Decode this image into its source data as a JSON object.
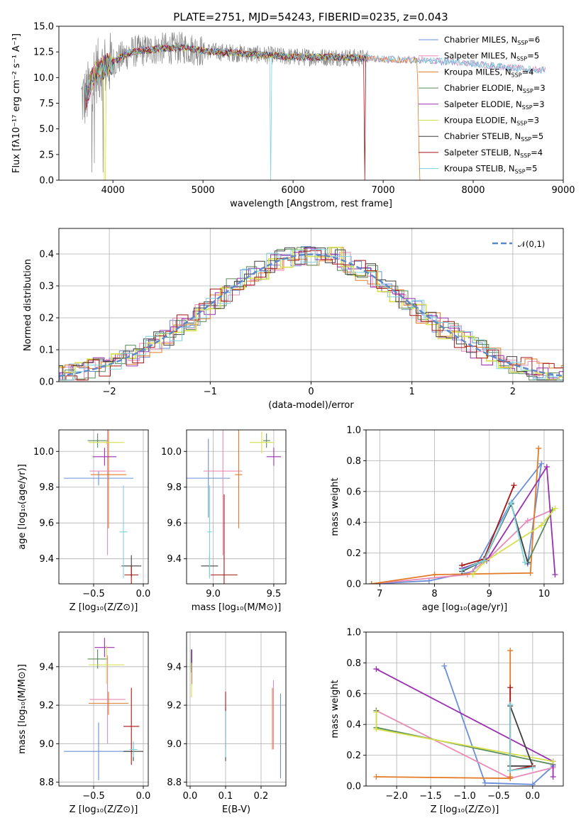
{
  "figure_title": "PLATE=2751, MJD=54243, FIBERID=0235, z=0.043",
  "colors": [
    "#6a8fd8",
    "#e88ab7",
    "#e37a26",
    "#5a8a5a",
    "#9a2fb0",
    "#d6e04a",
    "#404040",
    "#a81515",
    "#7dd3dc"
  ],
  "chart_data": [
    {
      "id": "spectrum",
      "type": "line",
      "xlabel": "wavelength [Angstrom, rest frame]",
      "ylabel": "Flux [fλ10⁻¹⁷ erg cm⁻² s⁻¹ A⁻¹]",
      "xlim": [
        3400,
        9000
      ],
      "ylim": [
        0,
        15
      ],
      "xticks": [
        4000,
        5000,
        6000,
        7000,
        8000,
        9000
      ],
      "yticks": [
        0.0,
        2.5,
        5.0,
        7.5,
        10.0,
        12.5,
        15.0
      ],
      "grid": false,
      "legend_position": "top-right",
      "legend": [
        {
          "name": "Chabrier MILES, N",
          "sub": "SSP",
          "val": "=6"
        },
        {
          "name": "Salpeter MILES, N",
          "sub": "SSP",
          "val": "=5"
        },
        {
          "name": "Kroupa MILES, N",
          "sub": "SSP",
          "val": "=4"
        },
        {
          "name": "Chabrier ELODIE, N",
          "sub": "SSP",
          "val": "=3"
        },
        {
          "name": "Salpeter ELODIE, N",
          "sub": "SSP",
          "val": "=3"
        },
        {
          "name": "Kroupa ELODIE, N",
          "sub": "SSP",
          "val": "=3"
        },
        {
          "name": "Chabrier STELIB, N",
          "sub": "SSP",
          "val": "=5"
        },
        {
          "name": "Salpeter STELIB, N",
          "sub": "SSP",
          "val": "=4"
        },
        {
          "name": "Kroupa STELIB, N",
          "sub": "SSP",
          "val": "=5"
        }
      ],
      "continuum": [
        [
          3700,
          8
        ],
        [
          3800,
          10.5
        ],
        [
          4000,
          11.5
        ],
        [
          4200,
          12.5
        ],
        [
          4500,
          12.8
        ],
        [
          4800,
          12.9
        ],
        [
          5000,
          12.6
        ],
        [
          5500,
          12.3
        ],
        [
          6000,
          12.0
        ],
        [
          6500,
          12.0
        ],
        [
          7000,
          11.8
        ],
        [
          7400,
          11.7
        ],
        [
          7800,
          11.5
        ],
        [
          8200,
          11.2
        ],
        [
          8600,
          10.8
        ],
        [
          8800,
          10.7
        ]
      ],
      "obs_range": [
        3650,
        6830
      ]
    },
    {
      "id": "residuals",
      "type": "step-histogram",
      "xlabel": "(data-model)/error",
      "ylabel": "Normed distribution",
      "xlim": [
        -2.5,
        2.5
      ],
      "ylim": [
        0,
        0.48
      ],
      "xticks": [
        -2,
        -1,
        0,
        1,
        2
      ],
      "yticks": [
        0.0,
        0.1,
        0.2,
        0.3,
        0.4
      ],
      "grid": true,
      "legend": "𝒩(0,1)",
      "gaussian": {
        "mean": 0,
        "sigma": 1
      }
    },
    {
      "id": "age-vs-Z",
      "type": "errorbar",
      "xlabel": "Z [log₁₀(Z/Z⊙)]",
      "ylabel": "age  [log₁₀(age/yr)]",
      "xlim": [
        -0.85,
        0.05
      ],
      "ylim": [
        9.26,
        10.12
      ],
      "xticks": [
        -0.5,
        0.0
      ],
      "xticklabels": [
        "−0.5",
        "0.0"
      ],
      "yticks": [
        9.4,
        9.6,
        9.8,
        10.0
      ],
      "grid": true,
      "points": [
        {
          "x": -0.45,
          "xe": 0.35,
          "y": 9.85,
          "ye": 0.04
        },
        {
          "x": -0.36,
          "xe": 0.18,
          "y": 9.89,
          "ye": 0.47
        },
        {
          "x": -0.35,
          "xe": 0.18,
          "y": 9.87,
          "ye": 0.3
        },
        {
          "x": -0.46,
          "xe": 0.1,
          "y": 10.06,
          "ye": 0.04
        },
        {
          "x": -0.39,
          "xe": 0.12,
          "y": 9.97,
          "ye": 0.05
        },
        {
          "x": -0.37,
          "xe": 0.18,
          "y": 10.05,
          "ye": 0.01
        },
        {
          "x": -0.12,
          "xe": 0.1,
          "y": 9.36,
          "ye": 0.06
        },
        {
          "x": -0.12,
          "xe": 0.07,
          "y": 9.31,
          "ye": 0.05
        },
        {
          "x": -0.2,
          "xe": 0.04,
          "y": 9.55,
          "ye": 0.26
        }
      ]
    },
    {
      "id": "age-vs-mass",
      "type": "errorbar",
      "xlabel": "mass [log₁₀(M/M⊙)]",
      "ylabel": "",
      "xlim": [
        8.78,
        9.6
      ],
      "ylim": [
        9.26,
        10.12
      ],
      "xticks": [
        9.0,
        9.5
      ],
      "yticks": [
        9.4,
        9.6,
        9.8,
        10.0
      ],
      "grid": true,
      "points": [
        {
          "x": 8.96,
          "xe": 0.18,
          "y": 9.85,
          "ye": 0.22
        },
        {
          "x": 9.08,
          "xe": 0.16,
          "y": 9.89,
          "ye": 0.47
        },
        {
          "x": 9.21,
          "xe": 0.03,
          "y": 9.87,
          "ye": 0.3
        },
        {
          "x": 9.44,
          "xe": 0.03,
          "y": 10.06,
          "ye": 0.04
        },
        {
          "x": 9.5,
          "xe": 0.06,
          "y": 9.97,
          "ye": 0.05
        },
        {
          "x": 9.4,
          "xe": 0.1,
          "y": 10.05,
          "ye": 0.06
        },
        {
          "x": 8.97,
          "xe": 0.07,
          "y": 9.36,
          "ye": 0.06
        },
        {
          "x": 9.09,
          "xe": 0.11,
          "y": 9.31,
          "ye": 0.45
        },
        {
          "x": 8.97,
          "xe": 0.02,
          "y": 9.55,
          "ye": 0.26
        }
      ]
    },
    {
      "id": "massweight-vs-age",
      "type": "line",
      "xlabel": "age  [log₁₀(age/yr)]",
      "ylabel": "mass weight",
      "xlim": [
        6.75,
        10.35
      ],
      "ylim": [
        0,
        1.0
      ],
      "xticks": [
        7,
        8,
        9,
        10
      ],
      "yticks": [
        0.0,
        0.2,
        0.4,
        0.6,
        0.8,
        1.0
      ],
      "grid": true,
      "series": [
        {
          "values": [
            [
              6.85,
              0.0
            ],
            [
              7.9,
              0.02
            ],
            [
              8.7,
              0.08
            ],
            [
              9.4,
              0.53
            ],
            [
              9.95,
              0.78
            ],
            [
              9.7,
              0.13
            ]
          ]
        },
        {
          "values": [
            [
              6.85,
              0.0
            ],
            [
              8.6,
              0.06
            ],
            [
              9.0,
              0.17
            ],
            [
              9.7,
              0.41
            ],
            [
              10.15,
              0.48
            ]
          ]
        },
        {
          "values": [
            [
              6.85,
              0.0
            ],
            [
              8.0,
              0.06
            ],
            [
              9.75,
              0.07
            ],
            [
              9.9,
              0.88
            ]
          ]
        },
        {
          "values": [
            [
              8.5,
              0.1
            ],
            [
              8.9,
              0.15
            ],
            [
              9.4,
              0.52
            ],
            [
              9.7,
              0.14
            ],
            [
              10.15,
              0.48
            ]
          ]
        },
        {
          "values": [
            [
              8.5,
              0.1
            ],
            [
              8.95,
              0.15
            ],
            [
              10.05,
              0.76
            ],
            [
              10.2,
              0.06
            ]
          ]
        },
        {
          "values": [
            [
              8.7,
              0.06
            ],
            [
              8.9,
              0.14
            ],
            [
              9.95,
              0.38
            ],
            [
              10.2,
              0.49
            ]
          ]
        },
        {
          "values": [
            [
              8.5,
              0.08
            ],
            [
              8.9,
              0.15
            ],
            [
              9.4,
              0.52
            ],
            [
              9.7,
              0.14
            ]
          ]
        },
        {
          "values": [
            [
              8.5,
              0.12
            ],
            [
              8.9,
              0.16
            ],
            [
              9.45,
              0.64
            ]
          ]
        },
        {
          "values": [
            [
              8.5,
              0.09
            ],
            [
              8.9,
              0.15
            ],
            [
              9.4,
              0.53
            ],
            [
              9.65,
              0.14
            ]
          ]
        }
      ]
    },
    {
      "id": "mass-vs-Z",
      "type": "errorbar",
      "xlabel": "Z [log₁₀(Z/Z⊙)]",
      "ylabel": "mass [log₁₀(M/M⊙)]",
      "xlim": [
        -0.85,
        0.05
      ],
      "ylim": [
        8.78,
        9.58
      ],
      "xticks": [
        -0.5,
        0.0
      ],
      "xticklabels": [
        "−0.5",
        "0.0"
      ],
      "yticks": [
        8.8,
        9.0,
        9.2,
        9.4
      ],
      "grid": true,
      "points": [
        {
          "x": -0.45,
          "xe": 0.35,
          "y": 8.96,
          "ye": 0.15
        },
        {
          "x": -0.36,
          "xe": 0.18,
          "y": 9.23,
          "ye": 0.23
        },
        {
          "x": -0.35,
          "xe": 0.2,
          "y": 9.21,
          "ye": 0.06
        },
        {
          "x": -0.46,
          "xe": 0.1,
          "y": 9.44,
          "ye": 0.05
        },
        {
          "x": -0.39,
          "xe": 0.1,
          "y": 9.5,
          "ye": 0.05
        },
        {
          "x": -0.37,
          "xe": 0.18,
          "y": 9.41,
          "ye": 0.1
        },
        {
          "x": -0.1,
          "xe": 0.1,
          "y": 8.96,
          "ye": 0.05
        },
        {
          "x": -0.12,
          "xe": 0.08,
          "y": 9.09,
          "ye": 0.2
        },
        {
          "x": -0.1,
          "xe": 0.04,
          "y": 8.97,
          "ye": 0.04
        }
      ]
    },
    {
      "id": "mass-vs-EBV",
      "type": "errorbar",
      "xlabel": "E(B-V)",
      "ylabel": "",
      "xlim": [
        -0.01,
        0.27
      ],
      "ylim": [
        8.78,
        9.58
      ],
      "xticks": [
        0.0,
        0.1,
        0.2
      ],
      "yticks": [
        8.8,
        9.0,
        9.2,
        9.4
      ],
      "grid": true,
      "points": [
        {
          "x": 0.255,
          "xe": 0.0,
          "y": 9.04,
          "ye": 0.22
        },
        {
          "x": 0.235,
          "xe": 0.0,
          "y": 9.15,
          "ye": 0.18
        },
        {
          "x": 0.232,
          "xe": 0.0,
          "y": 9.13,
          "ye": 0.16
        },
        {
          "x": 0.003,
          "xe": 0.0,
          "y": 9.43,
          "ye": 0.06
        },
        {
          "x": 0.005,
          "xe": 0.0,
          "y": 9.4,
          "ye": 0.09
        },
        {
          "x": 0.004,
          "xe": 0.0,
          "y": 9.33,
          "ye": 0.09
        },
        {
          "x": 0.1,
          "xe": 0.0,
          "y": 9.05,
          "ye": 0.14
        },
        {
          "x": 0.1,
          "xe": 0.0,
          "y": 9.12,
          "ye": 0.15
        },
        {
          "x": 0.1,
          "xe": 0.0,
          "y": 9.05,
          "ye": 0.12
        }
      ]
    },
    {
      "id": "massweight-vs-Z",
      "type": "line",
      "xlabel": "Z [log₁₀(Z/Z⊙)]",
      "ylabel": "mass weight",
      "xlim": [
        -2.45,
        0.45
      ],
      "ylim": [
        0,
        1.0
      ],
      "xticks": [
        -2.0,
        -1.5,
        -1.0,
        -0.5,
        0.0
      ],
      "xticklabels": [
        "−2.0",
        "−1.5",
        "−1.0",
        "−0.5",
        "0.0"
      ],
      "yticks": [
        0.0,
        0.2,
        0.4,
        0.6,
        0.8,
        1.0
      ],
      "grid": true,
      "series": [
        {
          "values": [
            [
              -1.3,
              0.78
            ],
            [
              -0.7,
              0.02
            ],
            [
              0.0,
              0.01
            ],
            [
              0.3,
              0.13
            ]
          ]
        },
        {
          "values": [
            [
              -2.3,
              0.49
            ],
            [
              -0.33,
              0.05
            ],
            [
              0.3,
              0.12
            ]
          ]
        },
        {
          "values": [
            [
              -2.3,
              0.06
            ],
            [
              -0.33,
              0.05
            ],
            [
              -0.33,
              0.88
            ],
            [
              -0.33,
              0.06
            ]
          ]
        },
        {
          "values": [
            [
              -2.3,
              0.49
            ],
            [
              -2.3,
              0.38
            ],
            [
              0.3,
              0.14
            ]
          ]
        },
        {
          "values": [
            [
              -2.3,
              0.76
            ],
            [
              0.3,
              0.16
            ],
            [
              0.3,
              0.06
            ]
          ]
        },
        {
          "values": [
            [
              -2.3,
              0.48
            ],
            [
              -2.3,
              0.37
            ],
            [
              0.3,
              0.16
            ]
          ]
        },
        {
          "values": [
            [
              -0.33,
              0.13
            ],
            [
              0.0,
              0.13
            ],
            [
              -0.33,
              0.52
            ]
          ]
        },
        {
          "values": [
            [
              -0.33,
              0.64
            ],
            [
              -0.33,
              0.1
            ],
            [
              0.0,
              0.13
            ]
          ]
        },
        {
          "values": [
            [
              -0.33,
              0.53
            ],
            [
              -0.33,
              0.1
            ],
            [
              0.0,
              0.12
            ]
          ]
        }
      ]
    }
  ]
}
